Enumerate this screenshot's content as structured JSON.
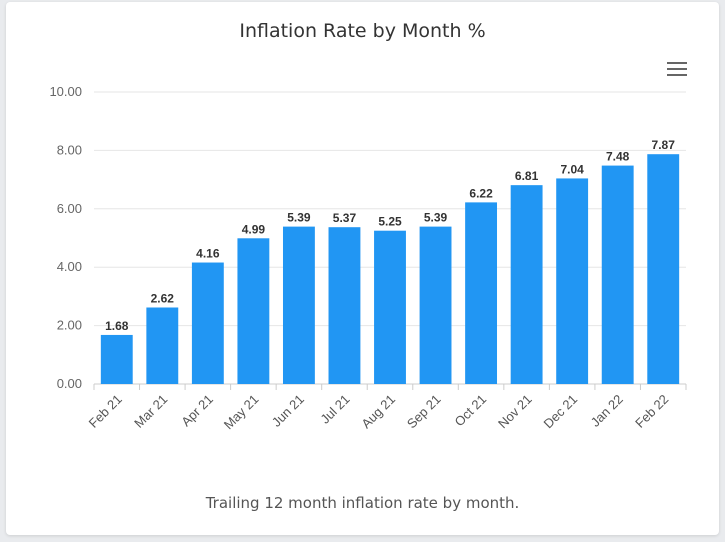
{
  "chart_data": {
    "type": "bar",
    "title": "Inflation Rate by Month %",
    "categories": [
      "Feb 21",
      "Mar 21",
      "Apr 21",
      "May 21",
      "Jun 21",
      "Jul 21",
      "Aug 21",
      "Sep 21",
      "Oct 21",
      "Nov 21",
      "Dec 21",
      "Jan 22",
      "Feb 22"
    ],
    "values": [
      1.68,
      2.62,
      4.16,
      4.99,
      5.39,
      5.37,
      5.25,
      5.39,
      6.22,
      6.81,
      7.04,
      7.48,
      7.87
    ],
    "y_ticks": [
      "0.00",
      "2.00",
      "4.00",
      "6.00",
      "8.00",
      "10.00"
    ],
    "ylim": [
      0,
      10
    ],
    "grid": true,
    "bar_color": "#2196f3",
    "legend": "none"
  },
  "caption": "Trailing 12 month inflation rate by month.",
  "menu": {
    "icon": "hamburger-menu-icon"
  }
}
